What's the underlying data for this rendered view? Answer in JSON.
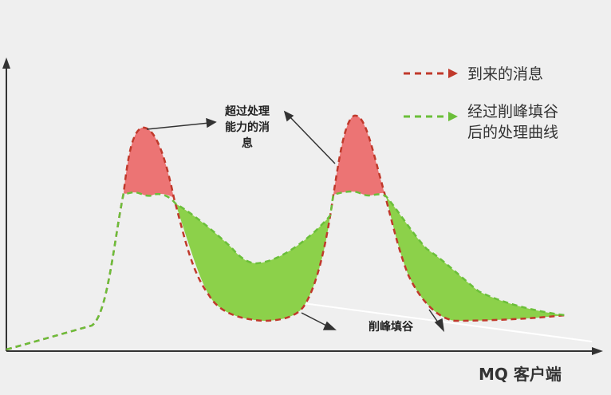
{
  "legend": {
    "incoming_label": "到来的消息",
    "processed_label_line1": "经过削峰填谷",
    "processed_label_line2": "后的处理曲线"
  },
  "annotations": {
    "overflow_line1": "超过处理",
    "overflow_line2": "能力的消",
    "overflow_line3": "息",
    "valley_fill": "削峰填谷"
  },
  "axis": {
    "x_label": "MQ 客户端"
  },
  "colors": {
    "incoming": "#c0392b",
    "processed": "#6bbf3a",
    "overflow_fill": "#ec7474",
    "valley_fill": "#8cd14a",
    "background": "#efefef",
    "axis": "#333333"
  }
}
